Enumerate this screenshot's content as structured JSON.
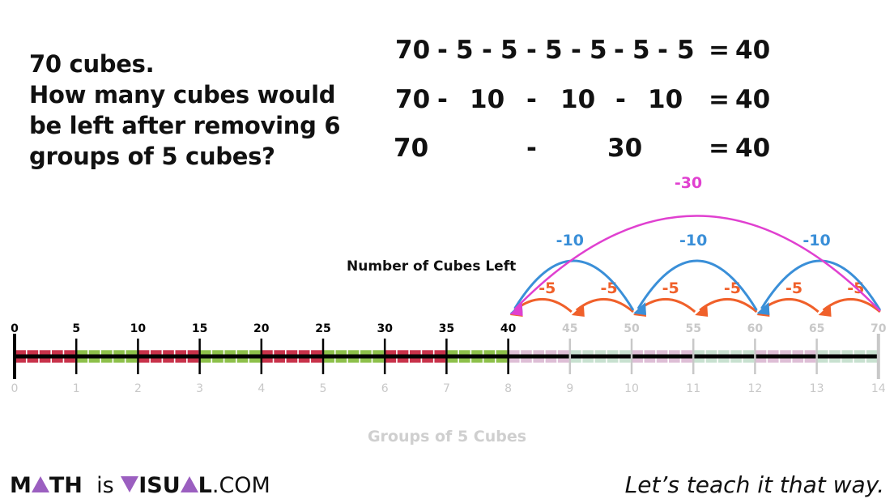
{
  "question": {
    "line1": "70 cubes.",
    "line2": "How many cubes would",
    "line3": "be left after removing 6",
    "line4": "groups of 5 cubes?"
  },
  "equations": [
    {
      "terms": [
        "70",
        "-",
        "5",
        "-",
        "5",
        "-",
        "5",
        "-",
        "5",
        "-",
        "5",
        "-",
        "5",
        "=",
        "40"
      ]
    },
    {
      "terms": [
        "70",
        "-",
        "10",
        "-",
        "10",
        "-",
        "10",
        "=",
        "40"
      ]
    },
    {
      "terms": [
        "70",
        "-",
        "30",
        "=",
        "40"
      ]
    }
  ],
  "number_line": {
    "top_labels": [
      "0",
      "5",
      "10",
      "15",
      "20",
      "25",
      "30",
      "35",
      "40",
      "45",
      "50",
      "55",
      "60",
      "65",
      "70"
    ],
    "bottom_labels": [
      "0",
      "1",
      "2",
      "3",
      "4",
      "5",
      "6",
      "7",
      "8",
      "9",
      "10",
      "11",
      "12",
      "13",
      "14"
    ],
    "bottom_title": "Groups of 5 Cubes",
    "result_label": "Number of Cubes Left",
    "remaining": 40,
    "start": 70,
    "jumps_5_label": "-5",
    "jumps_10_label": "-10",
    "jump_30_label": "-30",
    "colors": {
      "red": "#c8324a",
      "green": "#8dc04a",
      "faded_pink": "#d9b3cf",
      "faded_green": "#bfdcc8",
      "orange": "#f0602a",
      "blue": "#3a8fd8",
      "magenta": "#e040d0",
      "gray": "#c8c8c8"
    }
  },
  "footer": {
    "logo_m": "M",
    "logo_ath": "TH",
    "logo_is": "is",
    "logo_isu": "ISU",
    "logo_l": "L",
    "logo_com": ".COM",
    "tagline": "Let’s teach it that way."
  }
}
